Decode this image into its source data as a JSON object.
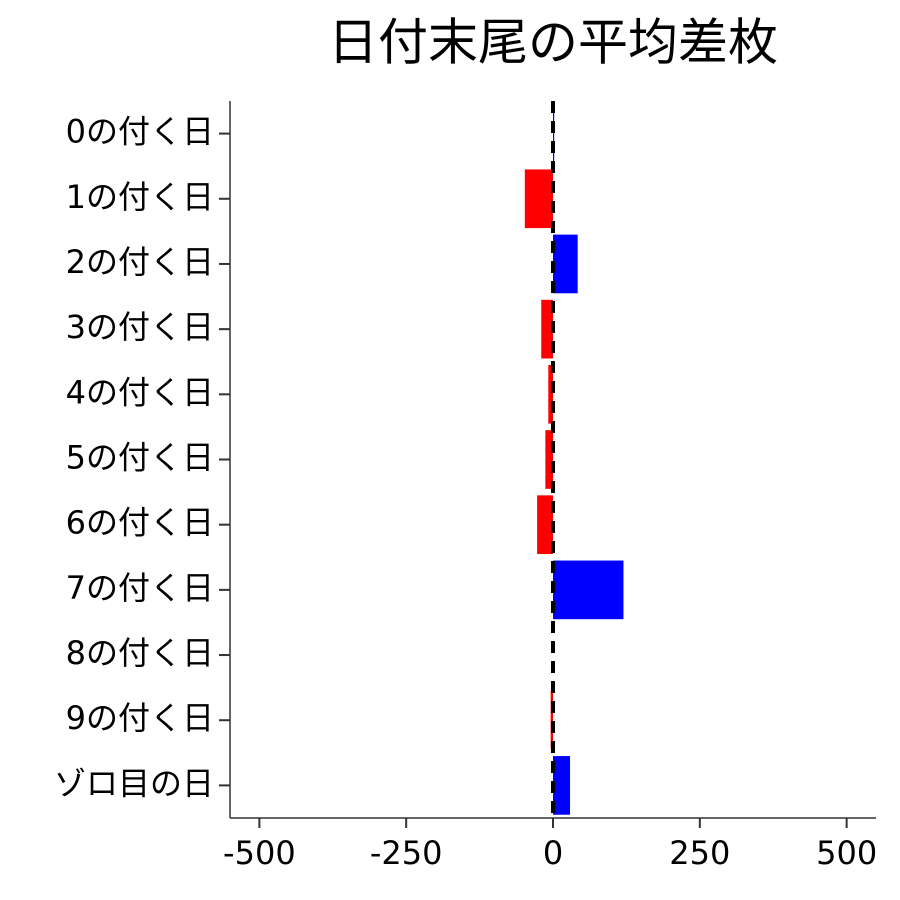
{
  "chart_data": {
    "type": "hbar",
    "title": "日付末尾の平均差枚",
    "categories": [
      "0の付く日",
      "1の付く日",
      "2の付く日",
      "3の付く日",
      "4の付く日",
      "5の付く日",
      "6の付く日",
      "7の付く日",
      "8の付く日",
      "9の付く日",
      "ゾロ目の日"
    ],
    "values": [
      2,
      -48,
      42,
      -20,
      -8,
      -13,
      -27,
      120,
      0,
      -4,
      29
    ],
    "positive_color": "#0000ff",
    "negative_color": "#ff0000",
    "xlim": [
      -550,
      550
    ],
    "xticks": [
      -500,
      -250,
      0,
      250,
      500
    ],
    "reference_line": 0
  }
}
